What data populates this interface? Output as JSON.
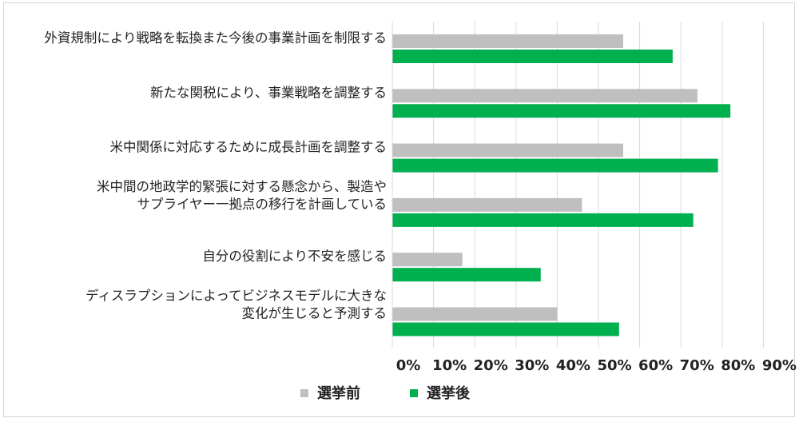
{
  "chart_data": {
    "type": "bar",
    "orientation": "horizontal",
    "categories": [
      [
        "外資規制により戦略を転換また今後の事業計画を制限する"
      ],
      [
        "新たな関税により、事業戦略を調整する"
      ],
      [
        "米中関係に対応するために成長計画を調整する"
      ],
      [
        "米中間の地政学的緊張に対する懸念から、製造や",
        "サプライヤー一拠点の移行を計画している"
      ],
      [
        "自分の役割により不安を感じる"
      ],
      [
        "ディスラプションによってビジネスモデルに大きな",
        "変化が生じると予測する"
      ]
    ],
    "series": [
      {
        "name": "選挙前",
        "color": "#bfbfbf",
        "values": [
          56,
          74,
          56,
          46,
          17,
          40
        ]
      },
      {
        "name": "選挙後",
        "color": "#00b04f",
        "values": [
          68,
          82,
          79,
          73,
          36,
          55
        ]
      }
    ],
    "xlim": [
      0,
      90
    ],
    "xticks": [
      0,
      10,
      20,
      30,
      40,
      50,
      60,
      70,
      80,
      90
    ],
    "tick_labels": [
      "0%",
      "10%",
      "20%",
      "30%",
      "40%",
      "50%",
      "60%",
      "70%",
      "80%",
      "90%"
    ],
    "grid": true,
    "legend_position": "bottom"
  }
}
